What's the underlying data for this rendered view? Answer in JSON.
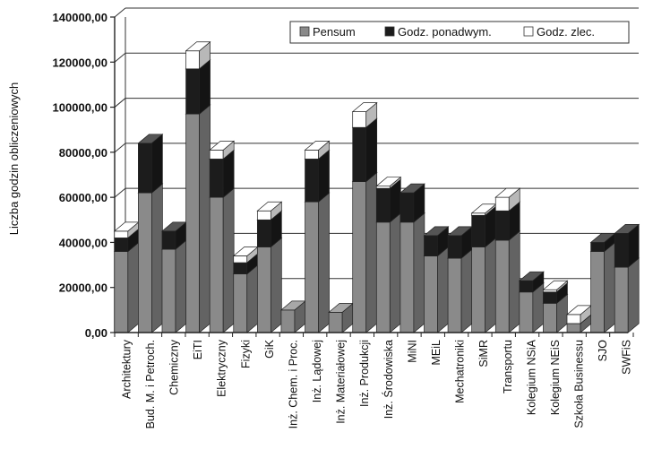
{
  "chart_data": {
    "type": "bar",
    "stacked": true,
    "three_d": true,
    "ylabel": "Liczba godzin obliczeniowych",
    "xlabel": "",
    "ylim": [
      0,
      140000
    ],
    "yticks": [
      "0,00",
      "20000,00",
      "40000,00",
      "60000,00",
      "80000,00",
      "100000,00",
      "120000,00",
      "140000,00"
    ],
    "ytick_values": [
      0,
      20000,
      40000,
      60000,
      80000,
      100000,
      120000,
      140000
    ],
    "grid": true,
    "legend_position": "top-right",
    "categories": [
      "Architektury",
      "Bud. M. i Petroch.",
      "Chemiczny",
      "EiTI",
      "Elektryczny",
      "Fizyki",
      "GiK",
      "Inż. Chem. i Proc.",
      "Inż. Lądowej",
      "Inż. Materiałowej",
      "Inż. Produkcji",
      "Inż. Środowiska",
      "MiNI",
      "MEiL",
      "Mechatroniki",
      "SiMR",
      "Transportu",
      "Kolegium NSiA",
      "Kolegium NEiS",
      "Szkoła Businessu",
      "SJO",
      "SWFiS"
    ],
    "series": [
      {
        "name": "Pensum",
        "color": "#8a8a8a",
        "values": [
          36000,
          62000,
          37000,
          97000,
          60000,
          26000,
          38000,
          10000,
          58000,
          9000,
          67000,
          49000,
          49000,
          34000,
          33000,
          38000,
          41000,
          18000,
          13000,
          4000,
          36000,
          29000
        ]
      },
      {
        "name": "Godz. ponadwym.",
        "color": "#1c1c1c",
        "values": [
          6000,
          22000,
          8000,
          20000,
          17000,
          5000,
          12000,
          0,
          19000,
          0,
          24000,
          15000,
          13000,
          9000,
          10000,
          14000,
          13000,
          5000,
          5000,
          0,
          4000,
          15000
        ]
      },
      {
        "name": "Godz. zlec.",
        "color": "#ffffff",
        "values": [
          3000,
          0,
          0,
          8000,
          4000,
          3000,
          4000,
          0,
          4000,
          0,
          7000,
          1000,
          0,
          0,
          0,
          1000,
          6000,
          0,
          1000,
          4000,
          0,
          0
        ]
      }
    ]
  }
}
